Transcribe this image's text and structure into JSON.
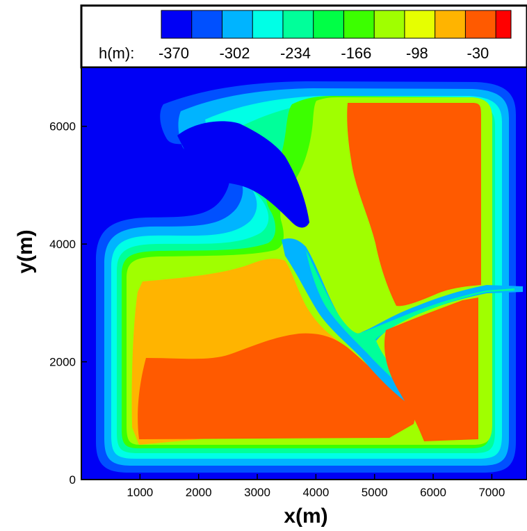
{
  "chart_data": {
    "type": "heatmap",
    "xlabel": "x(m)",
    "ylabel": "y(m)",
    "xlim": [
      0,
      7600
    ],
    "ylim": [
      0,
      7000
    ],
    "x_ticks": [
      1000,
      2000,
      3000,
      4000,
      5000,
      6000,
      7000
    ],
    "y_ticks": [
      0,
      2000,
      4000,
      6000
    ],
    "grid": false,
    "legend": {
      "position": "top",
      "variable_label": "h(m):",
      "tick_labels": [
        "-370",
        "-302",
        "-234",
        "-166",
        "-98",
        "-30"
      ],
      "levels": [
        -370,
        -353,
        -336,
        -319,
        -302,
        -285,
        -268,
        -251,
        -234,
        -217,
        -200,
        -183,
        -166,
        -149,
        -132,
        -115,
        -98,
        -81,
        -64,
        -47,
        -30
      ],
      "colors": [
        "#0000f5",
        "#0050ff",
        "#00b4ff",
        "#00ffe6",
        "#00ff9a",
        "#00ff46",
        "#3cff00",
        "#a0ff00",
        "#e6ff00",
        "#ffb400",
        "#ff5a00",
        "#ff0000"
      ]
    },
    "field": {
      "description_units": "h(m)",
      "background_value": -370,
      "region_values": {
        "outer_ring": -353,
        "ring_2": -336,
        "ring_3": -302,
        "ring_4": -268,
        "ring_5": -234,
        "ring_6": -200,
        "ring_7": -166,
        "left_basin": -98,
        "left_basin_core": -64,
        "right_block": -64,
        "lower_right_block": -64,
        "channel": -302,
        "deep_bay": -370
      }
    }
  }
}
